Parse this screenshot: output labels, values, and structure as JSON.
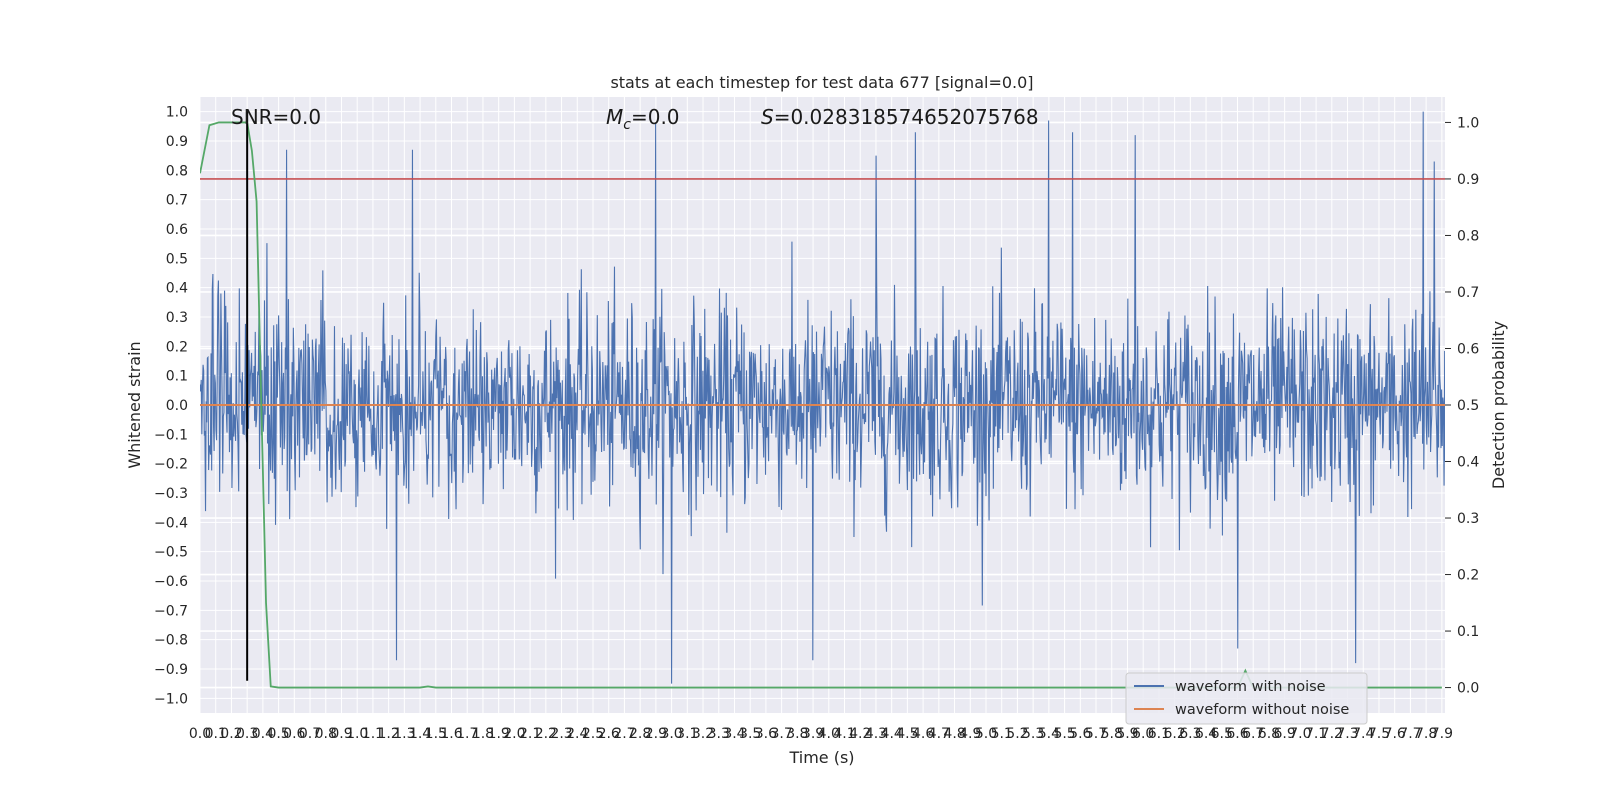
{
  "chart_data": {
    "type": "line",
    "title": "stats at each timestep for test data 677 [signal=0.0]",
    "xlabel": "Time (s)",
    "ylabel": "Whitened strain",
    "y2label": "Detection probability",
    "xlim": [
      0,
      7.92
    ],
    "ylim": [
      -1.05,
      1.05
    ],
    "y2lim": [
      -0.045,
      1.045
    ],
    "x_ticks": [
      0.0,
      0.1,
      0.2,
      0.3,
      0.4,
      0.5,
      0.6,
      0.7,
      0.8,
      0.9,
      1.0,
      1.1,
      1.2,
      1.3,
      1.4,
      1.5,
      1.6,
      1.7,
      1.8,
      1.9,
      2.0,
      2.1,
      2.2,
      2.3,
      2.4,
      2.5,
      2.6,
      2.7,
      2.8,
      2.9,
      3.0,
      3.1,
      3.2,
      3.3,
      3.4,
      3.5,
      3.6,
      3.7,
      3.8,
      3.9,
      4.0,
      4.1,
      4.2,
      4.3,
      4.4,
      4.5,
      4.6,
      4.7,
      4.8,
      4.9,
      5.0,
      5.1,
      5.2,
      5.3,
      5.4,
      5.5,
      5.6,
      5.7,
      5.8,
      5.9,
      6.0,
      6.1,
      6.2,
      6.3,
      6.4,
      6.5,
      6.6,
      6.7,
      6.8,
      6.9,
      7.0,
      7.1,
      7.2,
      7.3,
      7.4,
      7.5,
      7.6,
      7.7,
      7.8,
      7.9
    ],
    "y_ticks": [
      -1.0,
      -0.9,
      -0.8,
      -0.7,
      -0.6,
      -0.5,
      -0.4,
      -0.3,
      -0.2,
      -0.1,
      0.0,
      0.1,
      0.2,
      0.3,
      0.4,
      0.5,
      0.6,
      0.7,
      0.8,
      0.9,
      1.0
    ],
    "y2_ticks": [
      0.0,
      0.1,
      0.2,
      0.3,
      0.4,
      0.5,
      0.6,
      0.7,
      0.8,
      0.9,
      1.0
    ],
    "grid": true,
    "legend_location": "lower-right",
    "annotations": {
      "snr": "SNR=0.0",
      "mc_symbol": "M",
      "mc_sub": "c",
      "mc_value": "=0.0",
      "s_symbol": "S",
      "s_value": "=0.028318574652075768"
    },
    "threshold_line": {
      "axis": "y2",
      "value": 0.9,
      "color": "#c44e52"
    },
    "marker_line": {
      "x": 0.3,
      "y_from": -0.94,
      "y_to": 1.0,
      "color": "#000000"
    },
    "series": [
      {
        "name": "waveform with noise",
        "axis": "y",
        "color": "#4c72b0",
        "kind": "noise",
        "sample_rate": 256,
        "envelope_typical": [
          -0.45,
          0.45
        ],
        "spikes": [
          {
            "x": 0.55,
            "y": 0.87
          },
          {
            "x": 1.35,
            "y": 0.87
          },
          {
            "x": 2.9,
            "y": 0.96
          },
          {
            "x": 3.0,
            "y": -0.95
          },
          {
            "x": 4.3,
            "y": 0.85
          },
          {
            "x": 4.55,
            "y": 0.93
          },
          {
            "x": 5.4,
            "y": 0.97
          },
          {
            "x": 5.55,
            "y": 0.93
          },
          {
            "x": 5.95,
            "y": 0.92
          },
          {
            "x": 6.6,
            "y": -0.83
          },
          {
            "x": 7.35,
            "y": -0.88
          },
          {
            "x": 7.78,
            "y": 1.0
          },
          {
            "x": 7.85,
            "y": 0.83
          },
          {
            "x": 1.25,
            "y": -0.87
          },
          {
            "x": 3.9,
            "y": -0.87
          }
        ]
      },
      {
        "name": "waveform without noise",
        "axis": "y",
        "color": "#dd8452",
        "x": [
          0,
          7.92
        ],
        "y": [
          0.0,
          0.0
        ]
      },
      {
        "name": "detection probability",
        "axis": "y2",
        "color": "#55a868",
        "x": [
          0.0,
          0.06,
          0.12,
          0.18,
          0.24,
          0.3,
          0.33,
          0.36,
          0.39,
          0.42,
          0.45,
          0.5,
          1.0,
          1.4,
          1.45,
          1.5,
          2.0,
          3.0,
          4.0,
          5.0,
          6.0,
          6.6,
          6.65,
          6.7,
          7.0,
          7.9
        ],
        "y": [
          0.91,
          0.995,
          1.0,
          1.0,
          1.0,
          1.0,
          0.95,
          0.86,
          0.5,
          0.15,
          0.002,
          0.0,
          0.0,
          0.0,
          0.002,
          0.0,
          0.0,
          0.0,
          0.0,
          0.0,
          0.0,
          0.0,
          0.03,
          0.0,
          0.0,
          0.0
        ]
      }
    ]
  }
}
